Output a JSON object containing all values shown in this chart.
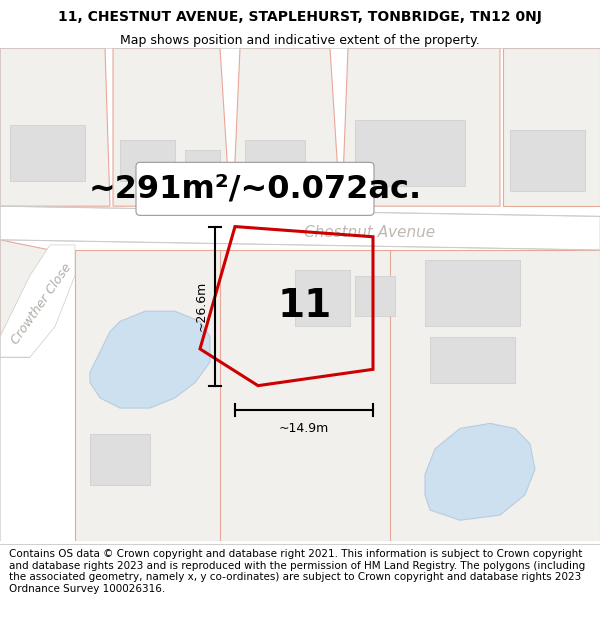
{
  "title": "11, CHESTNUT AVENUE, STAPLEHURST, TONBRIDGE, TN12 0NJ",
  "subtitle": "Map shows position and indicative extent of the property.",
  "area_text": "~291m²/~0.072ac.",
  "street_name": "Chestnut Avenue",
  "crowther_close": "Crowther Close",
  "property_number": "11",
  "dim_width": "~14.9m",
  "dim_height": "~26.6m",
  "footer_text": "Contains OS data © Crown copyright and database right 2021. This information is subject to Crown copyright and database rights 2023 and is reproduced with the permission of HM Land Registry. The polygons (including the associated geometry, namely x, y co-ordinates) are subject to Crown copyright and database rights 2023 Ordnance Survey 100026316.",
  "bg_color": "#f7f6f3",
  "road_color": "#ffffff",
  "road_stroke": "#e8a898",
  "parcel_fill": "#f2f0ed",
  "building_fill": "#dedede",
  "building_stroke": "#cccccc",
  "water_color": "#cce0f0",
  "water_stroke": "#b8ccdf",
  "crowther_road_fill": "#f0eeeb",
  "plot_stroke": "#cc0000",
  "title_fontsize": 10,
  "subtitle_fontsize": 9,
  "area_fontsize": 23,
  "street_fontsize": 11,
  "crowther_fontsize": 9,
  "number_fontsize": 28,
  "footer_fontsize": 7.5,
  "dim_fontsize": 9
}
